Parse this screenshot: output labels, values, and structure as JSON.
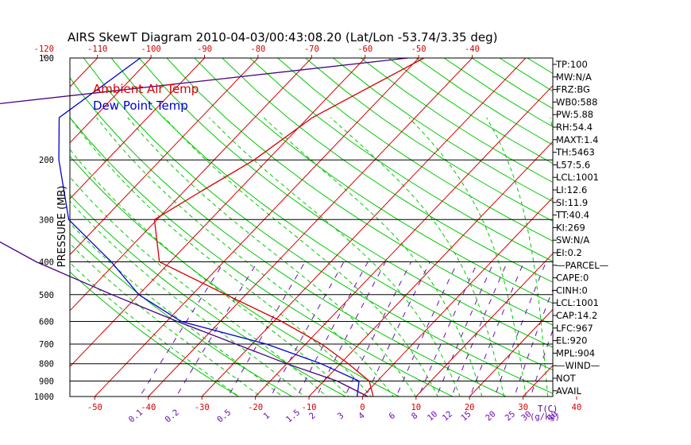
{
  "chart_data": {
    "type": "line",
    "title": "AIRS SkewT Diagram 2010-04-03/00:43:08.20 (Lat/Lon -53.74/3.35 deg)",
    "ylabel": "PRESSURE (MB)",
    "y_ticks": [
      "100",
      "200",
      "300",
      "400",
      "500",
      "600",
      "700",
      "800",
      "900",
      "1000"
    ],
    "top_ticks": [
      "-120",
      "-110",
      "-100",
      "-90",
      "-80",
      "-70",
      "-60",
      "-50",
      "-40"
    ],
    "bottom_ticks": [
      "-50",
      "-40",
      "-30",
      "-20",
      "-10",
      "0",
      "10",
      "20",
      "30",
      "40"
    ],
    "bottom_axis_label": "T(C)",
    "mixing_ratio_labels": [
      "0.1",
      "0.2",
      "0.5",
      "1",
      "1.5",
      "2",
      "3",
      "4",
      "6",
      "8",
      "10",
      "12",
      "15",
      "20",
      "25",
      "30",
      "40"
    ],
    "mixing_ratio_axis_label": "(g/kg)",
    "series": [
      {
        "name": "Ambient Air Temp",
        "color": "#d40000",
        "points": [
          {
            "p": 100,
            "t": -49
          },
          {
            "p": 150,
            "t": -59.2
          },
          {
            "p": 200,
            "t": -62.5
          },
          {
            "p": 250,
            "t": -67
          },
          {
            "p": 300,
            "t": -70.5
          },
          {
            "p": 400,
            "t": -62
          },
          {
            "p": 500,
            "t": -43.7
          },
          {
            "p": 600,
            "t": -28.5
          },
          {
            "p": 700,
            "t": -17
          },
          {
            "p": 800,
            "t": -8.5
          },
          {
            "p": 900,
            "t": -1.5
          },
          {
            "p": 1000,
            "t": 2
          }
        ]
      },
      {
        "name": "Dew Point Temp",
        "color": "#0000d0",
        "points": [
          {
            "p": 100,
            "t": -102
          },
          {
            "p": 150,
            "t": -106.5
          },
          {
            "p": 200,
            "t": -99
          },
          {
            "p": 300,
            "t": -86.5
          },
          {
            "p": 400,
            "t": -71
          },
          {
            "p": 500,
            "t": -60
          },
          {
            "p": 600,
            "t": -47.3
          },
          {
            "p": 700,
            "t": -27.3
          },
          {
            "p": 800,
            "t": -13.6
          },
          {
            "p": 900,
            "t": -3.4
          },
          {
            "p": 1000,
            "t": -1
          }
        ]
      },
      {
        "name": "",
        "color": "#4b0082",
        "points": [
          {
            "p": 100,
            "t": -52
          },
          {
            "p": 150,
            "t": -141
          },
          {
            "p": 200,
            "t": -130
          },
          {
            "p": 300,
            "t": -107
          },
          {
            "p": 400,
            "t": -85
          },
          {
            "p": 500,
            "t": -65
          },
          {
            "p": 600,
            "t": -48
          },
          {
            "p": 700,
            "t": -33
          },
          {
            "p": 800,
            "t": -20
          },
          {
            "p": 900,
            "t": -7.5
          },
          {
            "p": 1000,
            "t": 1
          }
        ]
      }
    ],
    "indices": [
      "TP:100",
      "MW:N/A",
      "FRZ:BG",
      "WB0:588",
      "PW:5.88",
      "RH:54.4",
      "MAXT:1.4",
      "TH:5463",
      "L57:5.6",
      "LCL:1001",
      "LI:12.6",
      "SI:11.9",
      "TT:40.4",
      "KI:269",
      "SW:N/A",
      "EI:0.2",
      "—PARCEL—",
      "CAPE:0",
      "CINH:0",
      "LCL:1001",
      "CAP:14.2",
      "LFC:967",
      "EL:920",
      "MPL:904",
      "—WIND—",
      "NOT",
      "AVAIL"
    ],
    "colors": {
      "temp": "#d40000",
      "dewpoint": "#0000d0",
      "isotherm": "#d40000",
      "dry_adiabat": "#00c800",
      "moist_adiabat": "#00c800",
      "mixing_ratio": "#6a0dad",
      "bottom_ticks": "#d40000",
      "top_ticks": "#d40000",
      "mixing_labels": "#6a0dad"
    },
    "grid": true,
    "legend": "top-left"
  }
}
